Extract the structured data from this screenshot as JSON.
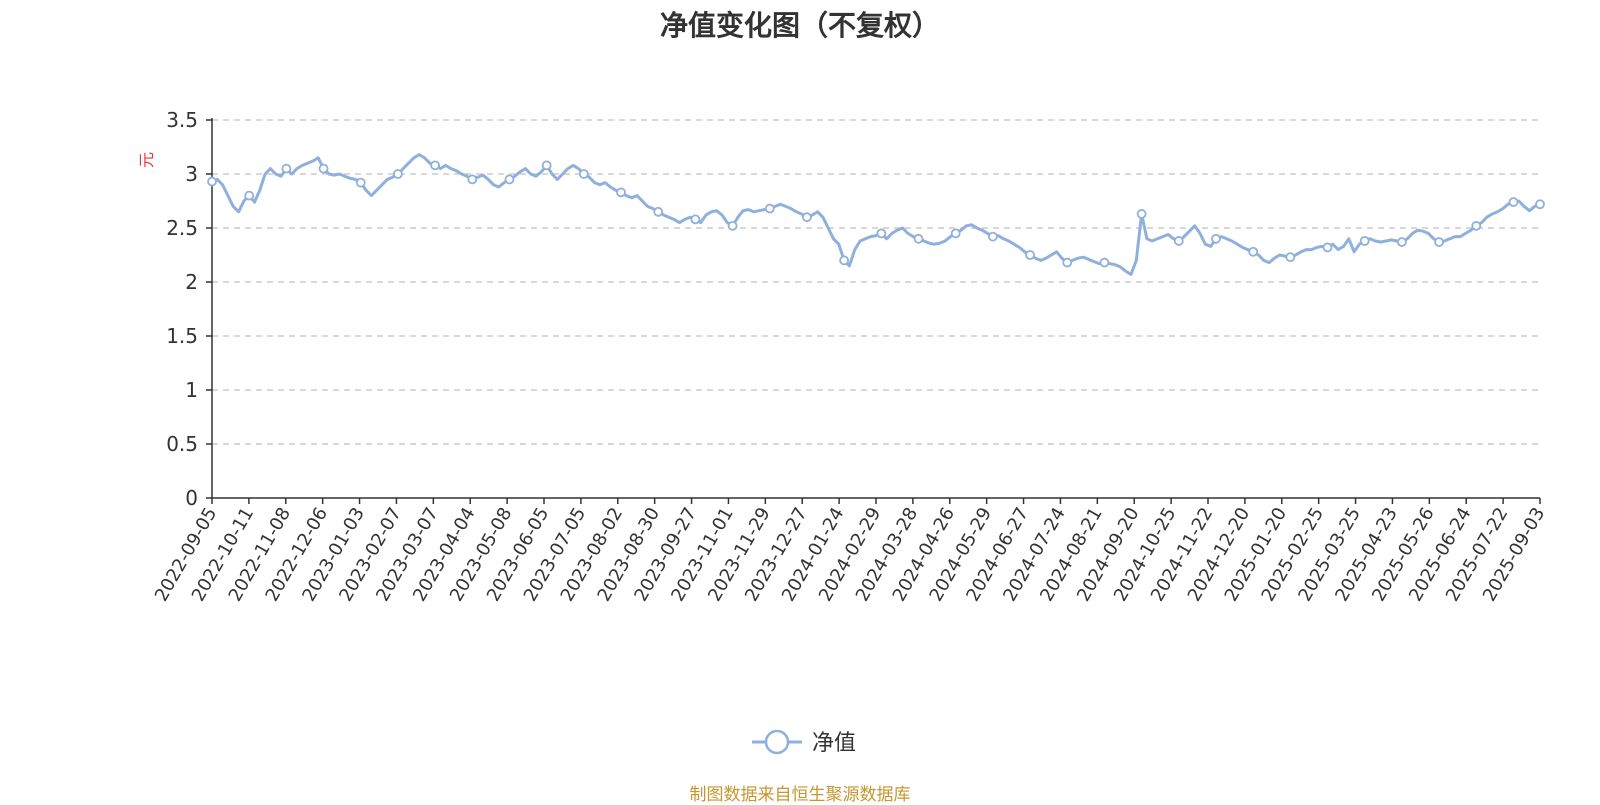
{
  "chart_data": {
    "type": "line",
    "title": "净值变化图（不复权）",
    "ylabel": "元",
    "ylim": [
      0,
      3.5
    ],
    "yticks": [
      "0",
      "0.5",
      "1",
      "1.5",
      "2",
      "2.5",
      "3",
      "3.5"
    ],
    "grid": true,
    "legend": "bottom-center",
    "x_tick_labels": [
      "2022-09-05",
      "2022-10-11",
      "2022-11-08",
      "2022-12-06",
      "2023-01-03",
      "2023-02-07",
      "2023-03-07",
      "2023-04-04",
      "2023-05-08",
      "2023-06-05",
      "2023-07-05",
      "2023-08-02",
      "2023-08-30",
      "2023-09-27",
      "2023-11-01",
      "2023-11-29",
      "2023-12-27",
      "2024-01-24",
      "2024-02-29",
      "2024-03-28",
      "2024-04-26",
      "2024-05-29",
      "2024-06-27",
      "2024-07-24",
      "2024-08-21",
      "2024-09-20",
      "2024-10-25",
      "2024-11-22",
      "2024-12-20",
      "2025-01-20",
      "2025-02-25",
      "2025-03-25",
      "2025-04-23",
      "2025-05-26",
      "2025-06-24",
      "2025-07-22",
      "2025-09-03"
    ],
    "series": [
      {
        "name": "净值",
        "color": "#8fb0dc",
        "values": [
          2.93,
          2.95,
          2.9,
          2.8,
          2.7,
          2.65,
          2.75,
          2.8,
          2.74,
          2.85,
          3.0,
          3.05,
          3.0,
          2.98,
          3.05,
          3.0,
          3.05,
          3.08,
          3.1,
          3.12,
          3.15,
          3.05,
          3.0,
          2.99,
          3.0,
          2.98,
          2.96,
          2.95,
          2.92,
          2.85,
          2.8,
          2.85,
          2.9,
          2.95,
          2.97,
          3.0,
          3.05,
          3.1,
          3.15,
          3.18,
          3.15,
          3.1,
          3.08,
          3.05,
          3.08,
          3.05,
          3.03,
          3.0,
          2.98,
          2.95,
          2.97,
          2.99,
          2.95,
          2.9,
          2.88,
          2.92,
          2.95,
          2.98,
          3.02,
          3.05,
          3.0,
          2.98,
          3.02,
          3.08,
          3.0,
          2.95,
          3.0,
          3.05,
          3.08,
          3.05,
          3.0,
          2.97,
          2.92,
          2.9,
          2.92,
          2.88,
          2.85,
          2.83,
          2.8,
          2.78,
          2.8,
          2.75,
          2.7,
          2.68,
          2.65,
          2.62,
          2.6,
          2.58,
          2.55,
          2.58,
          2.6,
          2.58,
          2.55,
          2.62,
          2.65,
          2.66,
          2.62,
          2.55,
          2.52,
          2.6,
          2.66,
          2.67,
          2.65,
          2.66,
          2.67,
          2.68,
          2.7,
          2.72,
          2.7,
          2.68,
          2.65,
          2.63,
          2.6,
          2.62,
          2.65,
          2.6,
          2.5,
          2.4,
          2.35,
          2.2,
          2.15,
          2.3,
          2.38,
          2.4,
          2.42,
          2.43,
          2.45,
          2.4,
          2.45,
          2.48,
          2.5,
          2.45,
          2.42,
          2.4,
          2.38,
          2.36,
          2.35,
          2.36,
          2.38,
          2.42,
          2.45,
          2.48,
          2.52,
          2.53,
          2.5,
          2.48,
          2.45,
          2.42,
          2.43,
          2.4,
          2.38,
          2.35,
          2.32,
          2.28,
          2.25,
          2.22,
          2.2,
          2.22,
          2.25,
          2.28,
          2.22,
          2.18,
          2.2,
          2.22,
          2.23,
          2.21,
          2.19,
          2.17,
          2.18,
          2.17,
          2.16,
          2.14,
          2.1,
          2.07,
          2.2,
          2.63,
          2.4,
          2.38,
          2.4,
          2.42,
          2.44,
          2.4,
          2.38,
          2.42,
          2.47,
          2.52,
          2.45,
          2.35,
          2.33,
          2.4,
          2.42,
          2.4,
          2.38,
          2.35,
          2.32,
          2.3,
          2.28,
          2.25,
          2.2,
          2.18,
          2.22,
          2.25,
          2.24,
          2.23,
          2.25,
          2.28,
          2.3,
          2.3,
          2.32,
          2.33,
          2.32,
          2.35,
          2.3,
          2.33,
          2.4,
          2.28,
          2.35,
          2.38,
          2.4,
          2.38,
          2.37,
          2.38,
          2.39,
          2.38,
          2.37,
          2.4,
          2.45,
          2.48,
          2.47,
          2.45,
          2.4,
          2.37,
          2.38,
          2.4,
          2.42,
          2.42,
          2.45,
          2.48,
          2.52,
          2.55,
          2.6,
          2.63,
          2.65,
          2.68,
          2.72,
          2.74,
          2.75,
          2.7,
          2.66,
          2.7,
          2.72
        ]
      }
    ]
  },
  "source_note": "制图数据来自恒生聚源数据库"
}
